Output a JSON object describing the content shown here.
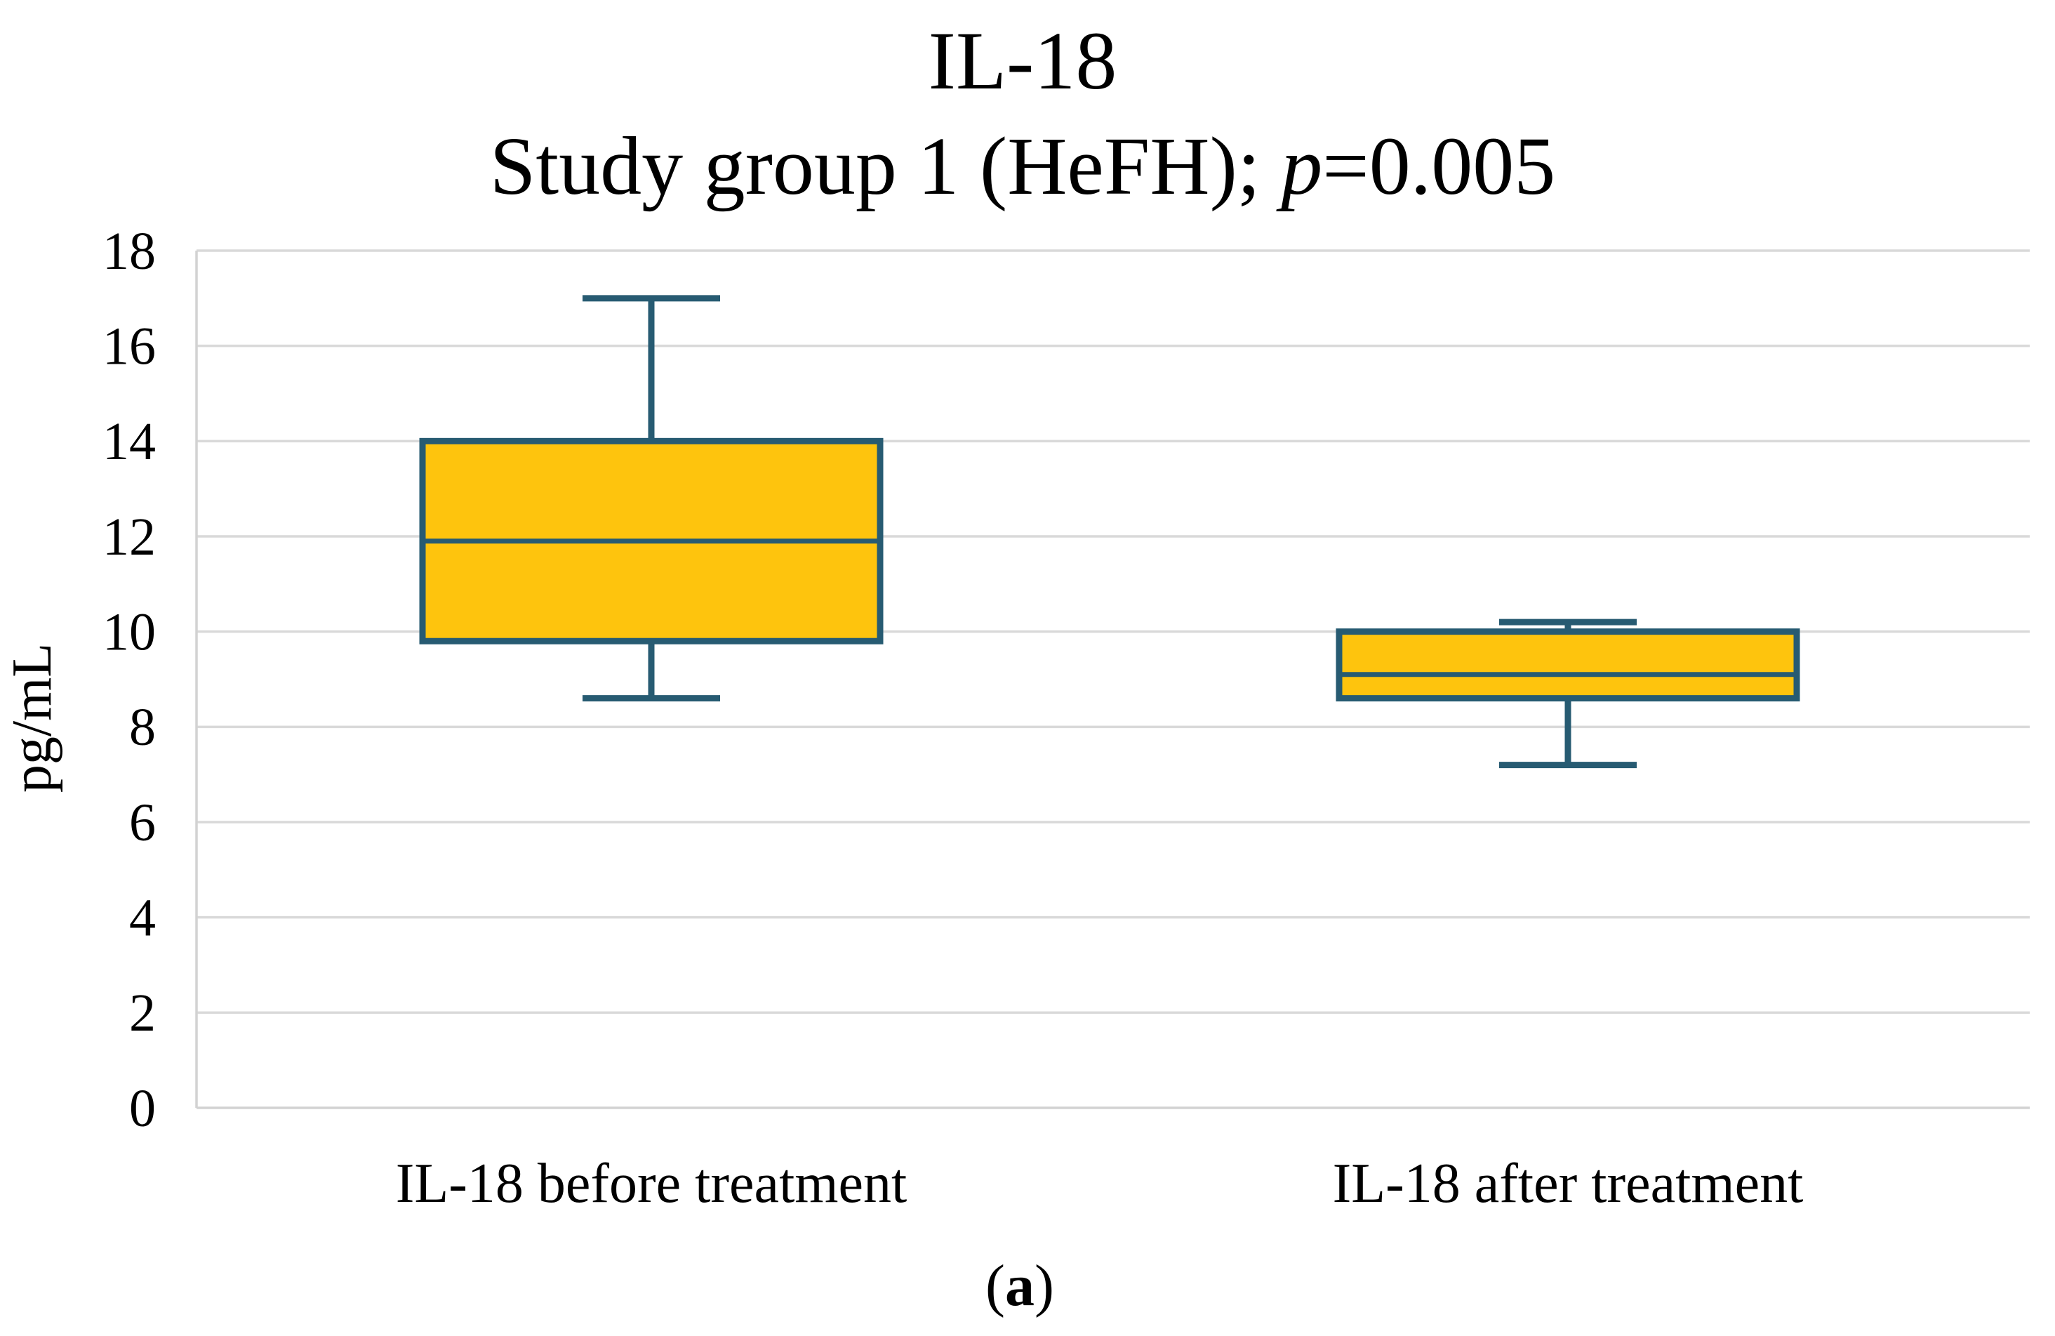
{
  "figure": {
    "caption": {
      "open": "(",
      "letter": "a",
      "close": ")"
    }
  },
  "chart_data": {
    "type": "boxplot",
    "title": "IL-18",
    "subtitle": "Study group 1 (HeFH); p=0.005",
    "subtitle_parts": {
      "prefix": "Study group 1 (HeFH); ",
      "italic": "p",
      "suffix": "=0.005"
    },
    "ylabel": "pg/mL",
    "xlabel": "",
    "ylim": [
      0,
      18
    ],
    "yticks": [
      0,
      2,
      4,
      6,
      8,
      10,
      12,
      14,
      16,
      18
    ],
    "grid": true,
    "legend": false,
    "categories": [
      "IL-18 before treatment",
      "IL-18 after treatment"
    ],
    "series": [
      {
        "name": "IL-18 before treatment",
        "whisker_low": 8.6,
        "q1": 9.8,
        "median": 11.9,
        "q3": 14.0,
        "whisker_high": 17.0
      },
      {
        "name": "IL-18 after treatment",
        "whisker_low": 7.2,
        "q1": 8.6,
        "median": 9.1,
        "q3": 10.0,
        "whisker_high": 10.2
      }
    ],
    "colors": {
      "box_fill": "#FEC40D",
      "box_border": "#275B72",
      "gridline": "#D9D9D9",
      "axis_line": "#D2D2D2",
      "text": "#000000"
    }
  }
}
